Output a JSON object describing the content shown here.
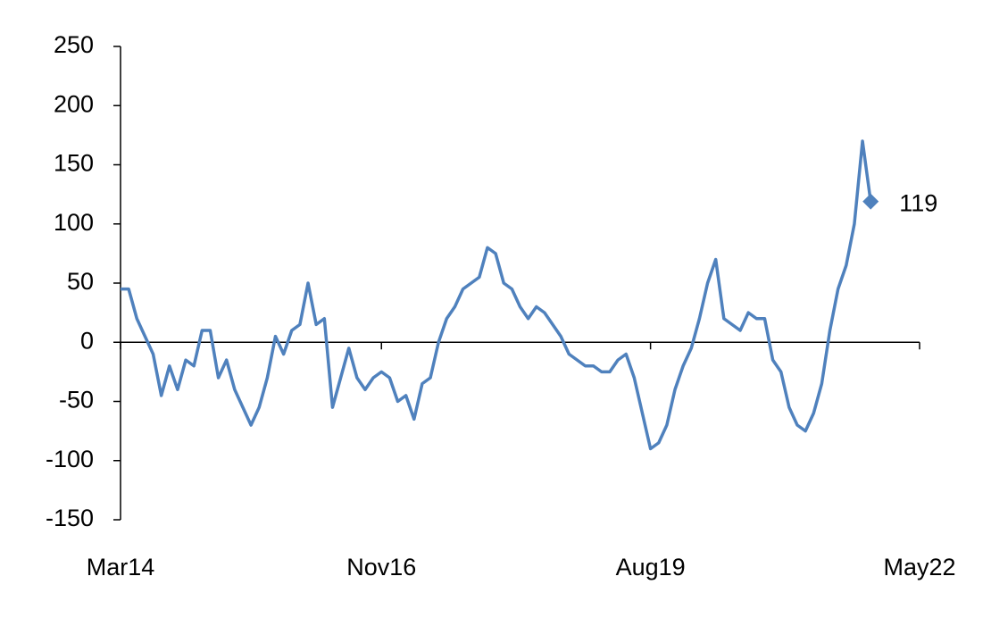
{
  "chart_data": {
    "type": "line",
    "categories": [
      "Mar14",
      "Apr14",
      "May14",
      "Jun14",
      "Jul14",
      "Aug14",
      "Sep14",
      "Oct14",
      "Nov14",
      "Dec14",
      "Jan15",
      "Feb15",
      "Mar15",
      "Apr15",
      "May15",
      "Jun15",
      "Jul15",
      "Aug15",
      "Sep15",
      "Oct15",
      "Nov15",
      "Dec15",
      "Jan16",
      "Feb16",
      "Mar16",
      "Apr16",
      "May16",
      "Jun16",
      "Jul16",
      "Aug16",
      "Sep16",
      "Oct16",
      "Nov16",
      "Dec16",
      "Jan17",
      "Feb17",
      "Mar17",
      "Apr17",
      "May17",
      "Jun17",
      "Jul17",
      "Aug17",
      "Sep17",
      "Oct17",
      "Nov17",
      "Dec17",
      "Jan18",
      "Feb18",
      "Mar18",
      "Apr18",
      "May18",
      "Jun18",
      "Jul18",
      "Aug18",
      "Sep18",
      "Oct18",
      "Nov18",
      "Dec18",
      "Jan19",
      "Feb19",
      "Mar19",
      "Apr19",
      "May19",
      "Jun19",
      "Jul19",
      "Aug19",
      "Sep19",
      "Oct19",
      "Nov19",
      "Dec19",
      "Jan20",
      "Feb20",
      "Mar20",
      "Apr20",
      "May20",
      "Jun20",
      "Jul20",
      "Aug20",
      "Sep20",
      "Oct20",
      "Nov20",
      "Dec20",
      "Jan21",
      "Feb21",
      "Mar21",
      "Apr21",
      "May21",
      "Jun21",
      "Jul21",
      "Aug21",
      "Sep21",
      "Oct21",
      "Nov21",
      "Dec21",
      "Jan22",
      "Feb22",
      "Mar22",
      "Apr22",
      "May22"
    ],
    "values": [
      45,
      45,
      20,
      5,
      -10,
      -45,
      -20,
      -40,
      -15,
      -20,
      10,
      10,
      -30,
      -15,
      -40,
      -55,
      -70,
      -55,
      -30,
      5,
      -10,
      10,
      15,
      50,
      15,
      20,
      -55,
      -30,
      -5,
      -30,
      -40,
      -30,
      -25,
      -30,
      -50,
      -45,
      -65,
      -35,
      -30,
      0,
      20,
      30,
      45,
      50,
      55,
      80,
      75,
      50,
      45,
      30,
      20,
      30,
      25,
      15,
      5,
      -10,
      -15,
      -20,
      -20,
      -25,
      -25,
      -15,
      -10,
      -30,
      -60,
      -90,
      -85,
      -70,
      -40,
      -20,
      -5,
      20,
      50,
      70,
      20,
      15,
      10,
      25,
      20,
      20,
      -15,
      -25,
      -55,
      -70,
      -75,
      -60,
      -35,
      10,
      45,
      65,
      100,
      170,
      119,
      null,
      null,
      null,
      null,
      null,
      null
    ],
    "color": "#4f81bd",
    "xticks": [
      "Mar14",
      "Nov16",
      "Aug19",
      "May22"
    ],
    "ylim": [
      -150,
      250
    ],
    "yticks": [
      -150,
      -100,
      -50,
      0,
      50,
      100,
      150,
      200,
      250
    ],
    "grid": false
  }
}
